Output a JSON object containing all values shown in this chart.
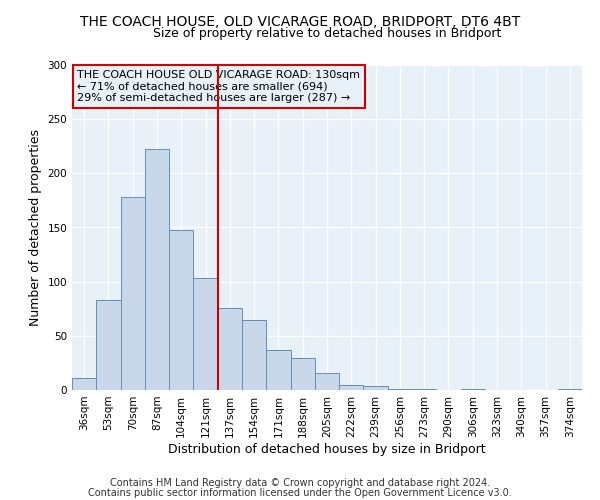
{
  "title": "THE COACH HOUSE, OLD VICARAGE ROAD, BRIDPORT, DT6 4BT",
  "subtitle": "Size of property relative to detached houses in Bridport",
  "xlabel": "Distribution of detached houses by size in Bridport",
  "ylabel": "Number of detached properties",
  "footnote1": "Contains HM Land Registry data © Crown copyright and database right 2024.",
  "footnote2": "Contains public sector information licensed under the Open Government Licence v3.0.",
  "bar_labels": [
    "36sqm",
    "53sqm",
    "70sqm",
    "87sqm",
    "104sqm",
    "121sqm",
    "137sqm",
    "154sqm",
    "171sqm",
    "188sqm",
    "205sqm",
    "222sqm",
    "239sqm",
    "256sqm",
    "273sqm",
    "290sqm",
    "306sqm",
    "323sqm",
    "340sqm",
    "357sqm",
    "374sqm"
  ],
  "bar_values": [
    11,
    83,
    178,
    222,
    148,
    103,
    76,
    65,
    37,
    30,
    16,
    5,
    4,
    1,
    1,
    0,
    1,
    0,
    0,
    0,
    1
  ],
  "bar_color": "#c8d8ea",
  "bar_edge_color": "#6090b8",
  "ylim": [
    0,
    300
  ],
  "yticks": [
    0,
    50,
    100,
    150,
    200,
    250,
    300
  ],
  "vline_x": 5.5,
  "vline_color": "#cc0000",
  "annotation_title": "THE COACH HOUSE OLD VICARAGE ROAD: 130sqm",
  "annotation_line1": "← 71% of detached houses are smaller (694)",
  "annotation_line2": "29% of semi-detached houses are larger (287) →",
  "annotation_box_color": "#cc0000",
  "background_color": "#ffffff",
  "plot_bg_color": "#e8f0f8",
  "grid_color": "#ffffff",
  "title_fontsize": 10,
  "subtitle_fontsize": 9,
  "axis_label_fontsize": 9,
  "tick_fontsize": 7.5,
  "annotation_fontsize": 8,
  "footnote_fontsize": 7
}
